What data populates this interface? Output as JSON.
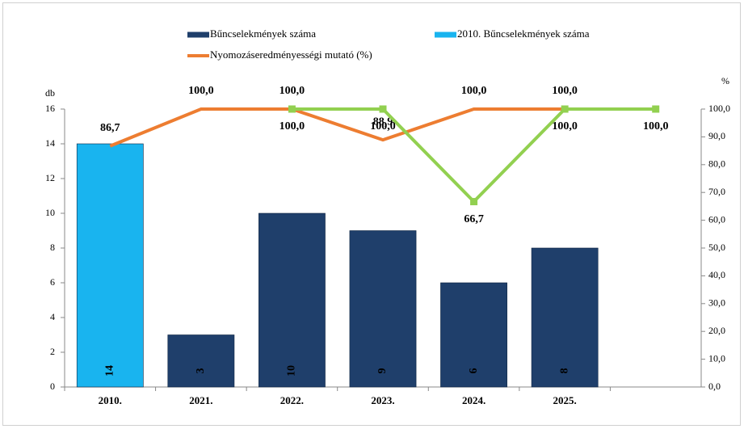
{
  "chart_data": {
    "type": "bar",
    "categories": [
      "2010.",
      "2021.",
      "2022.",
      "2023.",
      "2024.",
      "2025.",
      null
    ],
    "series": [
      {
        "name": "Bűncselekmények száma",
        "color": "#1f3f6b",
        "type": "bar",
        "values": [
          null,
          3,
          10,
          9,
          6,
          8,
          null
        ]
      },
      {
        "name": "2010. Bűncselekmények száma",
        "color": "#19b4ef",
        "type": "bar",
        "values": [
          14,
          null,
          null,
          null,
          null,
          null,
          null
        ]
      },
      {
        "name": "Nyomozáseredményességi mutató (%)",
        "color": "#ed7d31",
        "type": "line",
        "axis": "y2",
        "values": [
          86.7,
          100,
          100,
          88.9,
          100,
          100,
          null
        ],
        "value_labels": [
          "86,7",
          "100,0",
          "100,0",
          "88,9",
          "100,0",
          "100,0",
          null
        ],
        "label_color": "#000000"
      },
      {
        "color": "#92d050",
        "type": "line",
        "axis": "y2",
        "marker": "square",
        "values": [
          null,
          null,
          100,
          100,
          66.7,
          100,
          100
        ],
        "value_labels": [
          null,
          null,
          "100,0",
          "100,0",
          "66,7",
          "100,0",
          "100,0"
        ],
        "label_color": "#006100"
      }
    ],
    "y_label": "db",
    "y2_label": "%",
    "ylim": [
      0,
      16
    ],
    "yticks": [
      0,
      2,
      4,
      6,
      8,
      10,
      12,
      14,
      16
    ],
    "y2lim": [
      0,
      100
    ],
    "y2ticks": [
      {
        "value": 0,
        "label": "0,0"
      },
      {
        "value": 10,
        "label": "10,0"
      },
      {
        "value": 20,
        "label": "20,0"
      },
      {
        "value": 30,
        "label": "30,0"
      },
      {
        "value": 40,
        "label": "40,0"
      },
      {
        "value": 50,
        "label": "50,0"
      },
      {
        "value": 60,
        "label": "60,0"
      },
      {
        "value": 70,
        "label": "70,0"
      },
      {
        "value": 80,
        "label": "80,0"
      },
      {
        "value": 90,
        "label": "90,0"
      },
      {
        "value": 100,
        "label": "100,0"
      }
    ]
  }
}
